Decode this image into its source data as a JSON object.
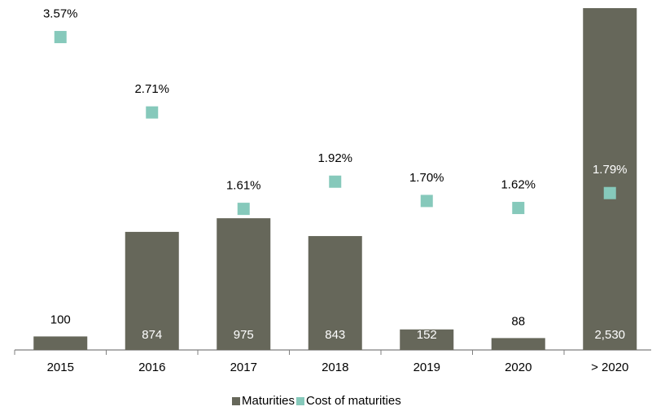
{
  "chart_data": {
    "type": "bar",
    "categories": [
      "2015",
      "2016",
      "2017",
      "2018",
      "2019",
      "2020",
      "> 2020"
    ],
    "series": [
      {
        "name": "Maturities",
        "color": "#66675a",
        "values": [
          100,
          874,
          975,
          843,
          152,
          88,
          2530
        ],
        "value_labels": [
          "100",
          "874",
          "975",
          "843",
          "152",
          "88",
          "2,530"
        ]
      },
      {
        "name": "Cost of maturities",
        "type": "scatter",
        "axis": "y2",
        "color": "#86c9bb",
        "values": [
          3.57,
          2.71,
          1.61,
          1.92,
          1.7,
          1.62,
          1.79
        ],
        "value_labels": [
          "3.57%",
          "2.71%",
          "1.61%",
          "1.92%",
          "1.70%",
          "1.62%",
          "1.79%"
        ]
      }
    ],
    "ylim": [
      0,
      2530
    ],
    "y2lim": [
      0,
      3.9
    ],
    "legend": "bottom"
  }
}
